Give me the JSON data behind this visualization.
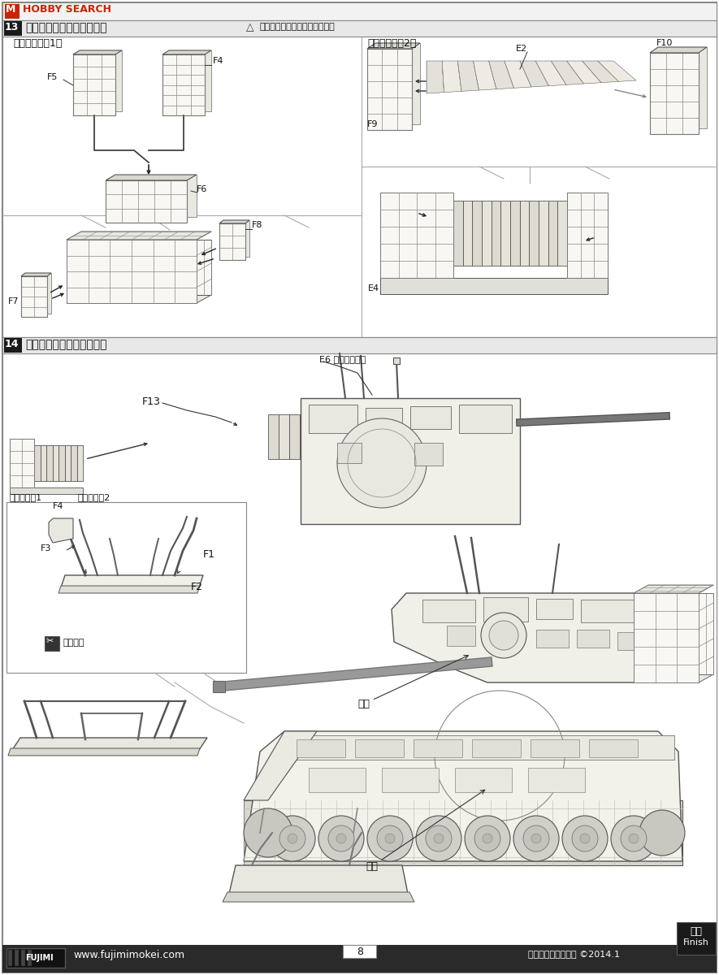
{
  "page_bg": "#ffffff",
  "border_color": "#444444",
  "header_bg": "#1a1a1a",
  "line_color": "#333333",
  "part_color": "#f8f7f4",
  "part_edge": "#555555",
  "grid_color": "#888888",
  "text_color": "#111111",
  "hobby_search_red": "#cc2200",
  "hobby_search_bg": "#f8f8f8",
  "step13_title": "砲塔バスケットの組み立て",
  "step14_title": "砲塔・ドーザーの組み立て",
  "warning_text": "部品の向きに注意しましょう。",
  "basket1_label": "「バスケット1」",
  "basket2_label": "「バスケット2」",
  "fujimi_url": "www.fujimimokei.com",
  "page_number": "8",
  "copyright": "フジミ模型株式会社 ©2014.1",
  "finish_jp": "完成",
  "finish_en": "Finish",
  "e6_label": "E6 環境センサー",
  "hoto_label": "砲塔",
  "shantai_label": "車体",
  "basket1_text": "バスケット1",
  "basket2_text": "バスケット2",
  "kiritoru_text": "切り取り"
}
